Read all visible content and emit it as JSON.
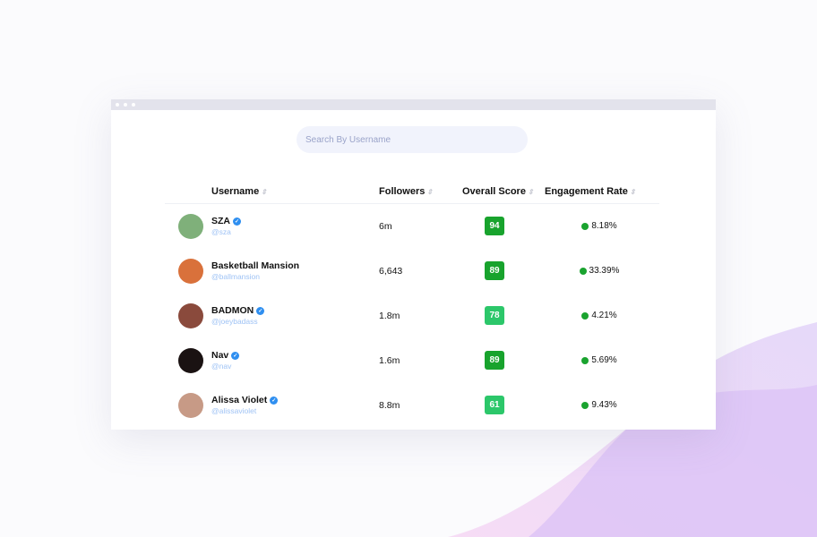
{
  "search": {
    "placeholder": "Search By Username"
  },
  "columns": [
    "Username",
    "Followers",
    "Overall Score",
    "Engagement Rate"
  ],
  "colors": {
    "score_high": "#18a32d",
    "score_mid": "#2cc76a",
    "verified": "#2f8ff0",
    "rate_dot": "#1aa32f"
  },
  "rows": [
    {
      "name": "SZA",
      "handle": "@sza",
      "verified": true,
      "followers": "6m",
      "score": "94",
      "rate": "8.18%",
      "avatar": "#7fb07a"
    },
    {
      "name": "Basketball Mansion",
      "handle": "@ballmansion",
      "verified": false,
      "followers": "6,643",
      "score": "89",
      "rate": "33.39%",
      "avatar": "#d9713b"
    },
    {
      "name": "BADMON",
      "handle": "@joeybadass",
      "verified": true,
      "followers": "1.8m",
      "score": "78",
      "rate": "4.21%",
      "avatar": "#8a4a3c"
    },
    {
      "name": "Nav",
      "handle": "@nav",
      "verified": true,
      "followers": "1.6m",
      "score": "89",
      "rate": "5.69%",
      "avatar": "#1a1212"
    },
    {
      "name": "Alissa Violet",
      "handle": "@alissaviolet",
      "verified": true,
      "followers": "8.8m",
      "score": "61",
      "rate": "9.43%",
      "avatar": "#c79a86"
    }
  ]
}
